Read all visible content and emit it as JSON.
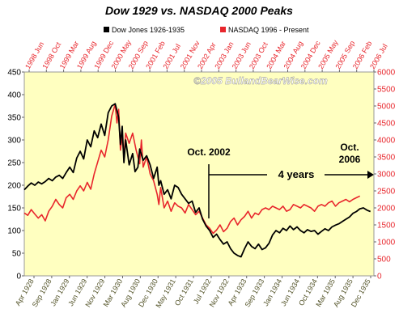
{
  "chart_data": {
    "type": "line",
    "title": "Dow 1929 vs. NASDAQ 2000 Peaks",
    "watermark": "©2005 BullandBearWise.com",
    "legend": {
      "placement": "top",
      "entries": [
        "Dow Jones 1926-1935",
        "NASDAQ 1996 - Present"
      ]
    },
    "colors": {
      "dow": "#000000",
      "nasdaq": "#e8262c",
      "plot_background": "#ffffc0",
      "top_axis_text": "#e8262c",
      "right_axis_text": "#e8262c",
      "left_axis_text": "#000000",
      "bottom_axis_text": "#55552a",
      "watermark": "#ffffff"
    },
    "grid": false,
    "bottom_axis": {
      "labels": [
        "Apr 1928",
        "Sep 1928",
        "Jan 1929",
        "Jun 1929",
        "Nov 1929",
        "Mar 1930",
        "Aug 1930",
        "Dec 1930",
        "May 1931",
        "Oct 1931",
        "Jul 1932",
        "Nov 1932",
        "Apr 1933",
        "Sep 1933",
        "Jan 1934",
        "Jun 1934",
        "Oct 1934",
        "Mar 1935",
        "Aug 1935",
        "Dec 1935"
      ]
    },
    "top_axis": {
      "labels": [
        "1998 Jun",
        "1998 Oct",
        "1999 Mar",
        "1999 Aug",
        "1999 Dec",
        "2000 May",
        "2000 Sep",
        "2001 Feb",
        "2001 Jul",
        "2001 Nov",
        "2002 Apr",
        "2003 Jan",
        "2003 Jun",
        "2003 Oct",
        "2004 Mar",
        "2004 Aug",
        "2004 Dec",
        "2005 May",
        "2005 Sep",
        "2006 Feb",
        "2006 Jul"
      ]
    },
    "left_axis": {
      "label": "",
      "ylim": [
        0,
        450
      ],
      "ticks": [
        0,
        50,
        100,
        150,
        200,
        250,
        300,
        350,
        400,
        450
      ]
    },
    "right_axis": {
      "label": "",
      "ylim": [
        0,
        6000
      ],
      "ticks": [
        0,
        500,
        1000,
        1500,
        2000,
        2500,
        3000,
        3500,
        4000,
        4500,
        5000,
        5500,
        6000
      ]
    },
    "annotations": {
      "oct2002": "Oct. 2002",
      "years": "4 years",
      "oct2006_line1": "Oct.",
      "oct2006_line2": "2006"
    },
    "x_range": [
      0,
      100
    ],
    "series": [
      {
        "name": "Dow Jones 1926-1935",
        "axis": "left",
        "points": [
          [
            0,
            190
          ],
          [
            1,
            198
          ],
          [
            2,
            205
          ],
          [
            3,
            200
          ],
          [
            4,
            207
          ],
          [
            5,
            203
          ],
          [
            6,
            208
          ],
          [
            7,
            215
          ],
          [
            8,
            210
          ],
          [
            9,
            218
          ],
          [
            10,
            222
          ],
          [
            11,
            215
          ],
          [
            12,
            228
          ],
          [
            13,
            240
          ],
          [
            14,
            228
          ],
          [
            15,
            260
          ],
          [
            16,
            275
          ],
          [
            17,
            258
          ],
          [
            18,
            300
          ],
          [
            19,
            285
          ],
          [
            20,
            320
          ],
          [
            21,
            305
          ],
          [
            22,
            335
          ],
          [
            23,
            310
          ],
          [
            24,
            360
          ],
          [
            25,
            375
          ],
          [
            26,
            380
          ],
          [
            27,
            350
          ],
          [
            27.5,
            290
          ],
          [
            28,
            330
          ],
          [
            28.5,
            250
          ],
          [
            29,
            300
          ],
          [
            30,
            245
          ],
          [
            31,
            270
          ],
          [
            31.7,
            230
          ],
          [
            32.5,
            240
          ],
          [
            33,
            280
          ],
          [
            34,
            255
          ],
          [
            35,
            265
          ],
          [
            36,
            245
          ],
          [
            37,
            215
          ],
          [
            38,
            240
          ],
          [
            38.5,
            200
          ],
          [
            39,
            210
          ],
          [
            40,
            180
          ],
          [
            41,
            190
          ],
          [
            42,
            170
          ],
          [
            43,
            200
          ],
          [
            44,
            195
          ],
          [
            45,
            180
          ],
          [
            46,
            170
          ],
          [
            47,
            160
          ],
          [
            48,
            165
          ],
          [
            49,
            140
          ],
          [
            50,
            150
          ],
          [
            51,
            125
          ],
          [
            52,
            110
          ],
          [
            53,
            100
          ],
          [
            54,
            85
          ],
          [
            55,
            92
          ],
          [
            56,
            80
          ],
          [
            57,
            70
          ],
          [
            58,
            75
          ],
          [
            59,
            60
          ],
          [
            60,
            50
          ],
          [
            61,
            45
          ],
          [
            62,
            42
          ],
          [
            63,
            60
          ],
          [
            64,
            75
          ],
          [
            65,
            65
          ],
          [
            66,
            60
          ],
          [
            67,
            70
          ],
          [
            68,
            58
          ],
          [
            69,
            62
          ],
          [
            70,
            72
          ],
          [
            71,
            90
          ],
          [
            72,
            100
          ],
          [
            73,
            95
          ],
          [
            74,
            105
          ],
          [
            75,
            100
          ],
          [
            76,
            110
          ],
          [
            77,
            102
          ],
          [
            78,
            108
          ],
          [
            79,
            100
          ],
          [
            80,
            95
          ],
          [
            81,
            102
          ],
          [
            82,
            98
          ],
          [
            83,
            100
          ],
          [
            84,
            92
          ],
          [
            85,
            98
          ],
          [
            86,
            104
          ],
          [
            87,
            100
          ],
          [
            88,
            108
          ],
          [
            89,
            112
          ],
          [
            90,
            115
          ],
          [
            91,
            120
          ],
          [
            92,
            125
          ],
          [
            93,
            130
          ],
          [
            94,
            138
          ],
          [
            95,
            142
          ],
          [
            96,
            148
          ],
          [
            97,
            150
          ],
          [
            98,
            145
          ],
          [
            99,
            142
          ]
        ]
      },
      {
        "name": "NASDAQ 1996 - Present",
        "axis": "right",
        "points": [
          [
            0,
            1850
          ],
          [
            1,
            1780
          ],
          [
            2,
            1950
          ],
          [
            3,
            1820
          ],
          [
            4,
            1700
          ],
          [
            5,
            1800
          ],
          [
            6,
            1620
          ],
          [
            7,
            1900
          ],
          [
            8,
            2050
          ],
          [
            9,
            2250
          ],
          [
            10,
            2100
          ],
          [
            11,
            2000
          ],
          [
            12,
            2300
          ],
          [
            13,
            2400
          ],
          [
            14,
            2250
          ],
          [
            15,
            2500
          ],
          [
            16,
            2650
          ],
          [
            17,
            2500
          ],
          [
            18,
            2750
          ],
          [
            19,
            2550
          ],
          [
            20,
            3000
          ],
          [
            21,
            3350
          ],
          [
            22,
            3700
          ],
          [
            23,
            3500
          ],
          [
            24,
            4000
          ],
          [
            25,
            4700
          ],
          [
            26,
            5050
          ],
          [
            26.5,
            4500
          ],
          [
            27,
            4900
          ],
          [
            27.5,
            3700
          ],
          [
            28,
            4100
          ],
          [
            28.5,
            3500
          ],
          [
            29,
            4200
          ],
          [
            30,
            3900
          ],
          [
            31,
            4200
          ],
          [
            32,
            3700
          ],
          [
            33,
            3300
          ],
          [
            33.5,
            4000
          ],
          [
            34,
            3200
          ],
          [
            35,
            3500
          ],
          [
            36,
            3000
          ],
          [
            37,
            2800
          ],
          [
            38,
            2400
          ],
          [
            38.5,
            2100
          ],
          [
            39,
            2600
          ],
          [
            40,
            2000
          ],
          [
            41,
            2200
          ],
          [
            42,
            1900
          ],
          [
            43,
            2150
          ],
          [
            44,
            2050
          ],
          [
            45,
            2000
          ],
          [
            46,
            1850
          ],
          [
            47,
            2100
          ],
          [
            48,
            1950
          ],
          [
            49,
            1800
          ],
          [
            50,
            1900
          ],
          [
            51,
            1700
          ],
          [
            52,
            1500
          ],
          [
            53,
            1400
          ],
          [
            54,
            1250
          ],
          [
            55,
            1350
          ],
          [
            56,
            1500
          ],
          [
            57,
            1300
          ],
          [
            58,
            1400
          ],
          [
            59,
            1600
          ],
          [
            60,
            1700
          ],
          [
            61,
            1500
          ],
          [
            62,
            1650
          ],
          [
            63,
            1750
          ],
          [
            64,
            1900
          ],
          [
            65,
            1700
          ],
          [
            66,
            1850
          ],
          [
            67,
            1800
          ],
          [
            68,
            1950
          ],
          [
            69,
            2000
          ],
          [
            70,
            1950
          ],
          [
            71,
            2050
          ],
          [
            72,
            2000
          ],
          [
            73,
            1950
          ],
          [
            74,
            2050
          ],
          [
            75,
            1900
          ],
          [
            76,
            1950
          ],
          [
            77,
            2100
          ],
          [
            78,
            2050
          ],
          [
            79,
            2000
          ],
          [
            80,
            2100
          ],
          [
            81,
            2050
          ],
          [
            82,
            2000
          ],
          [
            83,
            1900
          ],
          [
            84,
            2050
          ],
          [
            85,
            2100
          ],
          [
            86,
            2050
          ],
          [
            87,
            2150
          ],
          [
            88,
            2200
          ],
          [
            89,
            2050
          ],
          [
            90,
            2150
          ],
          [
            91,
            2200
          ],
          [
            92,
            2250
          ],
          [
            93,
            2180
          ],
          [
            94,
            2250
          ],
          [
            95,
            2300
          ],
          [
            96,
            2350
          ]
        ]
      }
    ]
  }
}
